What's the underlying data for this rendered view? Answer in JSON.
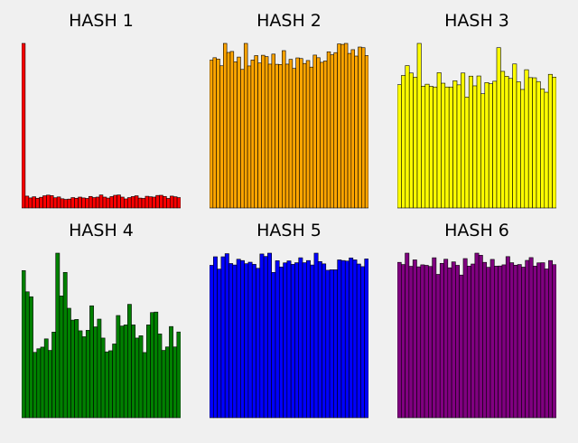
{
  "chart_data": [
    {
      "type": "bar",
      "title": "HASH 1",
      "color": "#ff0000",
      "grid": false,
      "ylim": [
        0,
        100
      ],
      "values": [
        100,
        7.2,
        6.1,
        6.8,
        5.9,
        6.5,
        7.4,
        7.8,
        7.5,
        6.2,
        6.7,
        5.6,
        5.2,
        5.4,
        6.3,
        5.9,
        6.6,
        6.1,
        5.8,
        7.0,
        6.3,
        6.6,
        7.9,
        6.6,
        6.0,
        6.9,
        7.7,
        7.9,
        6.6,
        5.5,
        6.3,
        6.9,
        7.4,
        6.0,
        5.8,
        7.1,
        6.8,
        6.6,
        7.6,
        7.7,
        7.0,
        5.8,
        7.2,
        6.8,
        6.3
      ]
    },
    {
      "type": "bar",
      "title": "HASH 2",
      "color": "#ffa500",
      "grid": false,
      "ylim": [
        0,
        100
      ],
      "values": [
        89.8,
        91.3,
        90.5,
        86.4,
        100,
        94.5,
        95.1,
        88.8,
        91.7,
        84.2,
        100,
        86.3,
        89.9,
        92.6,
        88.1,
        92.8,
        92.0,
        87.4,
        93.5,
        87.3,
        87.2,
        95.6,
        87.4,
        90.3,
        84.8,
        91.2,
        90.8,
        87.8,
        89.6,
        85.6,
        92.9,
        91.3,
        88.5,
        89.3,
        94.9,
        93.1,
        94.4,
        99.7,
        99.4,
        100,
        93.9,
        96.2,
        92.3,
        97.8,
        97.4,
        92.6
      ]
    },
    {
      "type": "bar",
      "title": "HASH 3",
      "color": "#ffff00",
      "grid": false,
      "ylim": [
        0,
        100
      ],
      "values": [
        74.9,
        80.5,
        86.5,
        82.0,
        79.4,
        100,
        74.0,
        75.2,
        73.9,
        73.5,
        82.2,
        75.8,
        73.5,
        73.5,
        77.3,
        74.8,
        82.0,
        67.3,
        80.1,
        74.2,
        80.2,
        69.4,
        76.2,
        75.5,
        77.0,
        97.4,
        83.0,
        80.0,
        78.7,
        87.5,
        76.7,
        72.0,
        84.0,
        79.2,
        79.1,
        76.8,
        72.4,
        70.3,
        81.2,
        79.5
      ]
    },
    {
      "type": "bar",
      "title": "HASH 4",
      "color": "#008000",
      "grid": false,
      "ylim": [
        0,
        100
      ],
      "values": [
        89.4,
        76.5,
        73.5,
        39.7,
        41.9,
        42.9,
        47.9,
        40.9,
        52.0,
        100,
        74.0,
        88.3,
        66.5,
        59.3,
        59.7,
        52.8,
        49.2,
        53.1,
        68.0,
        55.2,
        59.9,
        48.4,
        40.0,
        40.7,
        44.8,
        62.1,
        55.7,
        56.4,
        68.9,
        56.4,
        48.4,
        49.8,
        39.6,
        56.4,
        63.9,
        64.2,
        50.9,
        40.9,
        43.0,
        55.4,
        43.0,
        52.1
      ]
    },
    {
      "type": "bar",
      "title": "HASH 5",
      "color": "#0000ff",
      "grid": false,
      "ylim": [
        0,
        100
      ],
      "values": [
        92.6,
        97.8,
        90.3,
        97.8,
        99.7,
        93.7,
        92.8,
        96.3,
        95.5,
        93.6,
        94.5,
        93.2,
        90.8,
        99.5,
        98.0,
        100,
        88.3,
        95.4,
        91.6,
        94.1,
        95.3,
        93.2,
        94.2,
        97.2,
        94.2,
        95.5,
        92.8,
        100,
        94.9,
        93.5,
        89.6,
        89.9,
        89.9,
        95.9,
        95.5,
        95.2,
        97.1,
        95.9,
        93.4,
        91.8,
        96.5
      ]
    },
    {
      "type": "bar",
      "title": "HASH 6",
      "color": "#800080",
      "grid": false,
      "ylim": [
        0,
        100
      ],
      "values": [
        94.4,
        93.1,
        100,
        92.0,
        95.9,
        91.7,
        92.9,
        92.6,
        91.9,
        97.2,
        87.1,
        93.8,
        96.3,
        91.1,
        94.7,
        92.6,
        86.7,
        96.7,
        92.1,
        93.4,
        100,
        98.7,
        94.4,
        91.4,
        96.2,
        92.1,
        92.2,
        92.9,
        97.9,
        94.2,
        92.7,
        93.1,
        91.5,
        95.6,
        97.3,
        92.1,
        94.1,
        94.2,
        90.4,
        95.5,
        93.0
      ]
    }
  ]
}
